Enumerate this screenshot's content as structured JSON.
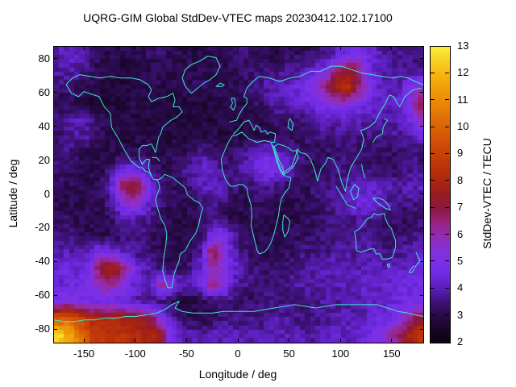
{
  "chart_data": {
    "type": "heatmap",
    "title": "UQRG-GIM Global StdDev-VTEC maps 20230412.102.17100",
    "xlabel": "Longitude / deg",
    "ylabel": "Latitude / deg",
    "xlim": [
      -180,
      180
    ],
    "ylim": [
      -87.5,
      87.5
    ],
    "xticks": [
      -150,
      -100,
      -50,
      0,
      50,
      100,
      150
    ],
    "yticks": [
      80,
      60,
      40,
      20,
      0,
      -20,
      -40,
      -60,
      -80
    ],
    "grid_on": false,
    "coastline_color": "#3ee8d0",
    "colorbar": {
      "label": "StdDev-VTEC / TECU",
      "min": 2,
      "max": 13,
      "ticks": [
        2,
        3,
        4,
        5,
        6,
        7,
        8,
        9,
        10,
        11,
        12,
        13
      ],
      "stops": [
        {
          "v": 2,
          "c": [
            14,
            2,
            20
          ]
        },
        {
          "v": 2.5,
          "c": [
            24,
            6,
            40
          ]
        },
        {
          "v": 3,
          "c": [
            40,
            10,
            72
          ]
        },
        {
          "v": 3.5,
          "c": [
            62,
            18,
            120
          ]
        },
        {
          "v": 4,
          "c": [
            90,
            30,
            185
          ]
        },
        {
          "v": 4.5,
          "c": [
            110,
            42,
            225
          ]
        },
        {
          "v": 5,
          "c": [
            122,
            48,
            232
          ]
        },
        {
          "v": 5.5,
          "c": [
            135,
            48,
            214
          ]
        },
        {
          "v": 6,
          "c": [
            148,
            44,
            175
          ]
        },
        {
          "v": 6.5,
          "c": [
            152,
            34,
            122
          ]
        },
        {
          "v": 7,
          "c": [
            138,
            24,
            66
          ]
        },
        {
          "v": 7.5,
          "c": [
            152,
            28,
            32
          ]
        },
        {
          "v": 8,
          "c": [
            172,
            38,
            14
          ]
        },
        {
          "v": 8.5,
          "c": [
            186,
            50,
            10
          ]
        },
        {
          "v": 9,
          "c": [
            200,
            64,
            8
          ]
        },
        {
          "v": 10,
          "c": [
            219,
            98,
            6
          ]
        },
        {
          "v": 11,
          "c": [
            235,
            139,
            8
          ]
        },
        {
          "v": 12,
          "c": [
            246,
            181,
            16
          ]
        },
        {
          "v": 13,
          "c": [
            250,
            237,
            60
          ]
        }
      ]
    },
    "grid": {
      "units": "TECU",
      "lon_range": [
        -180,
        180
      ],
      "lat_range": [
        87.5,
        -87.5
      ],
      "cols": 36,
      "rows": 18,
      "values": [
        [
          4,
          4.2,
          4,
          3.6,
          3.2,
          3,
          3,
          3,
          3,
          3.2,
          3.4,
          3.2,
          3,
          3,
          3,
          3,
          3.2,
          3.4,
          3.4,
          3.2,
          3,
          3,
          3.2,
          3.2,
          3.2,
          3.4,
          3.6,
          4,
          4.6,
          5,
          4.6,
          4,
          3.8,
          3.6,
          3.6,
          3.6
        ],
        [
          3.8,
          4,
          3.8,
          3.4,
          3,
          2.9,
          2.8,
          2.8,
          3,
          3,
          3,
          3,
          3,
          3,
          3,
          3,
          3,
          3.2,
          3.2,
          3.4,
          3.5,
          3.5,
          3.6,
          3.8,
          4,
          4.4,
          5,
          6.5,
          7.5,
          7,
          5,
          4.2,
          3.8,
          3.6,
          3.6,
          3.6
        ],
        [
          3.4,
          3.4,
          3.2,
          3,
          2.9,
          2.8,
          2.8,
          2.8,
          3,
          3,
          3,
          3,
          3,
          3.2,
          3.2,
          3,
          3,
          3,
          3.2,
          3.5,
          3.8,
          4,
          4,
          4.4,
          4.8,
          5.4,
          6.4,
          8,
          8.5,
          7.2,
          5.4,
          4.4,
          4,
          4,
          4.6,
          5.6
        ],
        [
          3.2,
          3,
          2.9,
          2.8,
          2.8,
          2.8,
          2.8,
          3,
          3,
          3,
          2.9,
          2.8,
          2.8,
          2.8,
          2.8,
          2.9,
          3,
          3,
          3,
          3.2,
          3.4,
          3.8,
          4,
          4,
          4.4,
          4.8,
          5,
          5.4,
          5.4,
          5,
          4.6,
          4.2,
          4,
          4.2,
          5,
          6.8
        ],
        [
          3.4,
          3.8,
          4,
          3.8,
          3.2,
          3,
          2.9,
          2.8,
          2.8,
          2.8,
          2.8,
          2.8,
          2.8,
          2.8,
          2.8,
          2.8,
          2.9,
          3,
          3,
          3,
          3.1,
          3.2,
          3.4,
          3.4,
          3.5,
          3.8,
          4,
          4,
          4.1,
          4,
          3.9,
          3.8,
          3.8,
          4,
          4.4,
          5.6
        ],
        [
          3.3,
          3.7,
          3.9,
          3.7,
          3.2,
          3,
          2.9,
          2.9,
          3,
          3,
          2.9,
          2.8,
          2.8,
          2.8,
          2.9,
          2.9,
          2.9,
          2.9,
          3,
          3,
          3,
          3.1,
          3.2,
          3.2,
          3.4,
          3.5,
          3.5,
          3.5,
          3.5,
          3.5,
          3.5,
          3.5,
          3.5,
          3.7,
          3.9,
          4.2
        ],
        [
          3.5,
          3.5,
          3.2,
          3,
          3,
          3,
          3,
          3,
          3,
          3,
          3,
          3,
          3.1,
          3.4,
          3.8,
          3.6,
          3.3,
          3.3,
          3.6,
          4,
          4.4,
          4.4,
          4.1,
          3.6,
          3.3,
          3.2,
          3.2,
          3.4,
          3.5,
          3.5,
          3.3,
          3.2,
          3.2,
          3.4,
          3.5,
          3.5
        ],
        [
          3.3,
          3.2,
          3.1,
          3,
          3,
          3.4,
          4.2,
          4.8,
          4.4,
          3.6,
          3.2,
          3.2,
          3.5,
          4,
          4.2,
          4,
          3.6,
          3.5,
          4,
          4.5,
          5,
          5,
          4.5,
          3.8,
          3.5,
          3.2,
          3.2,
          3.5,
          3.5,
          3.5,
          3.5,
          3.3,
          3.2,
          3.3,
          3.5,
          3.6
        ],
        [
          3.2,
          3.1,
          3,
          3,
          3.2,
          4,
          6.5,
          7.8,
          6.8,
          4.5,
          3.5,
          3.2,
          3.2,
          3.5,
          4,
          4.2,
          4,
          3.5,
          3.3,
          3.5,
          3.8,
          3.6,
          3.3,
          3.2,
          3.2,
          3.5,
          3.6,
          3.6,
          3.8,
          4.1,
          4.3,
          4.2,
          4,
          3.8,
          4,
          4.1
        ],
        [
          3.1,
          3,
          3,
          3,
          3.1,
          3.6,
          5,
          6,
          5.5,
          4,
          3.5,
          3.2,
          3,
          3.2,
          3.5,
          3.8,
          3.5,
          3.2,
          3,
          3.2,
          3.2,
          3.2,
          3,
          3,
          3.1,
          3.2,
          3.5,
          3.8,
          4.1,
          4.5,
          4.5,
          4.2,
          3.8,
          3.5,
          3.5,
          3.6
        ],
        [
          3.3,
          3.2,
          3,
          3,
          3,
          3.2,
          3.8,
          4,
          3.8,
          3.5,
          3.2,
          3,
          2.9,
          3,
          3.2,
          3.5,
          3.3,
          3,
          3,
          3,
          3,
          3,
          3,
          3,
          3.2,
          3.2,
          3.5,
          3.5,
          3.5,
          3.8,
          3.8,
          3.5,
          3.3,
          3.2,
          3.2,
          3.3
        ],
        [
          3.6,
          3.5,
          3.3,
          3.1,
          3,
          3,
          3.2,
          3.5,
          3.5,
          3.2,
          3,
          3,
          3,
          3,
          3.3,
          4.8,
          5.2,
          4,
          3.3,
          3,
          3,
          3,
          3,
          3.2,
          3.2,
          3.3,
          3.5,
          3.5,
          3.5,
          3.6,
          3.6,
          3.5,
          3.3,
          3.3,
          3.5,
          3.6
        ],
        [
          4,
          4,
          3.8,
          4,
          5,
          4.6,
          4.1,
          3.8,
          3.5,
          3.3,
          3.1,
          3,
          3,
          3.2,
          4,
          7.4,
          5.5,
          4,
          3.5,
          3.2,
          3.1,
          3.1,
          3.2,
          3.3,
          3.5,
          3.5,
          3.6,
          3.8,
          3.8,
          3.8,
          3.8,
          3.8,
          3.6,
          3.6,
          3.8,
          4.1
        ],
        [
          4.4,
          4.5,
          4.3,
          5,
          7,
          8,
          7.4,
          5.4,
          4.2,
          3.8,
          3.5,
          3.3,
          3.3,
          3.6,
          4.5,
          6,
          5.4,
          4.4,
          3.8,
          3.5,
          3.3,
          3.3,
          3.5,
          3.5,
          3.8,
          3.8,
          4,
          4,
          4,
          3.9,
          3.9,
          4,
          4,
          4.1,
          4.2,
          4.5
        ],
        [
          4.3,
          4.6,
          4.6,
          5,
          6,
          6.4,
          5.5,
          4.6,
          4,
          3.9,
          6.4,
          5,
          4,
          3.9,
          5,
          6.8,
          5.4,
          4,
          3.6,
          3.5,
          3.5,
          3.5,
          3.6,
          3.8,
          3.8,
          3.9,
          4,
          4,
          4,
          4.1,
          4.2,
          4.2,
          4.3,
          4.5,
          4.6,
          4.6
        ],
        [
          5,
          5.4,
          5,
          4.6,
          4.6,
          4.6,
          4.3,
          4.1,
          3.9,
          3.6,
          3.5,
          3.1,
          2.9,
          2.9,
          3,
          3.2,
          3.5,
          3.5,
          3.3,
          3.3,
          3.5,
          3.5,
          3.5,
          3.5,
          3.5,
          3.6,
          3.8,
          3.8,
          3.8,
          3.9,
          4,
          4.1,
          4.2,
          4.5,
          4.6,
          4.6
        ],
        [
          9.5,
          9.8,
          9,
          8.2,
          8,
          8,
          8,
          7.6,
          7.5,
          7,
          5,
          4,
          3.3,
          3,
          3,
          3.2,
          3.5,
          3.5,
          3.5,
          3.5,
          3.5,
          3.8,
          3.8,
          3.6,
          3.5,
          3.5,
          3.8,
          3.8,
          4,
          4,
          4.2,
          4.5,
          4.6,
          5,
          6,
          7
        ],
        [
          12.6,
          11.6,
          10.6,
          9.2,
          8.6,
          8.5,
          8.5,
          8.2,
          8,
          8,
          7.5,
          4.6,
          4,
          3.9,
          3.9,
          4,
          4,
          4,
          3.9,
          3.9,
          3.9,
          4,
          4,
          3.9,
          3.9,
          3.9,
          4,
          4.1,
          4.2,
          4.2,
          4.5,
          5,
          5.6,
          6.6,
          7.6,
          8.6
        ]
      ]
    }
  }
}
